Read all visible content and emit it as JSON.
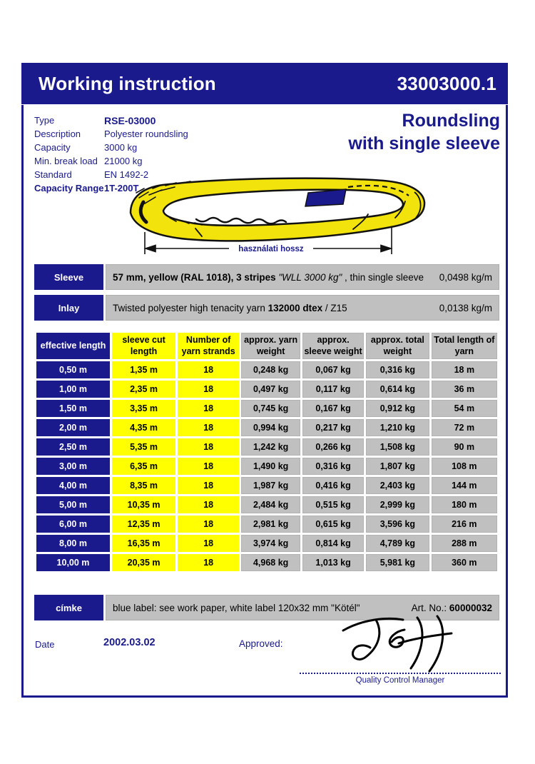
{
  "header": {
    "title": "Working instruction",
    "doc_number": "33003000.1"
  },
  "product": {
    "title_line1": "Roundsling",
    "title_line2": "with single sleeve",
    "specs": [
      {
        "label": "Type",
        "value": "RSE-03000"
      },
      {
        "label": "Description",
        "value": "Polyester roundsling"
      },
      {
        "label": "Capacity",
        "value": "3000 kg"
      },
      {
        "label": "Min. break load",
        "value": "21000 kg"
      },
      {
        "label": "Standard",
        "value": "EN 1492-2"
      },
      {
        "label": "Capacity Range",
        "value": "1T-200T"
      }
    ]
  },
  "illustration": {
    "dimension_label": "használati hossz"
  },
  "bands": {
    "sleeve": {
      "label": "Sleeve",
      "desc_bold": "57 mm, yellow (RAL 1018), 3 stripes ",
      "desc_italic": "\"WLL 3000 kg\"",
      "desc_tail": " , thin single sleeve",
      "weight": "0,0498 kg/m"
    },
    "inlay": {
      "label": "Inlay",
      "desc_lead": "Twisted polyester high tenacity yarn ",
      "desc_bold": "132000 dtex",
      "desc_tail": " / Z15",
      "weight": "0,0138 kg/m"
    },
    "cimke": {
      "label": "címke",
      "desc": "blue label: see work paper, white label 120x32 mm \"Kötél\"",
      "art_no_label": "Art. No.: ",
      "art_no_value": "60000032"
    }
  },
  "table": {
    "headers": [
      "effective length",
      "sleeve cut length",
      "Number of yarn strands",
      "approx. yarn weight",
      "approx. sleeve weight",
      "approx. total weight",
      "Total length of yarn"
    ],
    "rows": [
      [
        "0,50 m",
        "1,35 m",
        "18",
        "0,248 kg",
        "0,067 kg",
        "0,316 kg",
        "18 m"
      ],
      [
        "1,00 m",
        "2,35 m",
        "18",
        "0,497 kg",
        "0,117 kg",
        "0,614 kg",
        "36 m"
      ],
      [
        "1,50 m",
        "3,35 m",
        "18",
        "0,745 kg",
        "0,167 kg",
        "0,912 kg",
        "54 m"
      ],
      [
        "2,00 m",
        "4,35 m",
        "18",
        "0,994 kg",
        "0,217 kg",
        "1,210 kg",
        "72 m"
      ],
      [
        "2,50 m",
        "5,35 m",
        "18",
        "1,242 kg",
        "0,266 kg",
        "1,508 kg",
        "90 m"
      ],
      [
        "3,00 m",
        "6,35 m",
        "18",
        "1,490 kg",
        "0,316 kg",
        "1,807 kg",
        "108 m"
      ],
      [
        "4,00 m",
        "8,35 m",
        "18",
        "1,987 kg",
        "0,416 kg",
        "2,403 kg",
        "144 m"
      ],
      [
        "5,00 m",
        "10,35 m",
        "18",
        "2,484 kg",
        "0,515 kg",
        "2,999 kg",
        "180 m"
      ],
      [
        "6,00 m",
        "12,35 m",
        "18",
        "2,981 kg",
        "0,615 kg",
        "3,596 kg",
        "216 m"
      ],
      [
        "8,00 m",
        "16,35 m",
        "18",
        "3,974 kg",
        "0,814 kg",
        "4,789 kg",
        "288 m"
      ],
      [
        "10,00 m",
        "20,35 m",
        "18",
        "4,968 kg",
        "1,013 kg",
        "5,981 kg",
        "360 m"
      ]
    ]
  },
  "footer": {
    "date_label": "Date",
    "date_value": "2002.03.02",
    "approved_label": "Approved:",
    "signature_name": "Jeff",
    "signature_title": "Quality Control Manager"
  },
  "colors": {
    "navy": "#1a1a8c",
    "table_yellow": "#ffff00",
    "cell_gray": "#c0c0c0",
    "sling_yellow": "#f2e30c"
  }
}
